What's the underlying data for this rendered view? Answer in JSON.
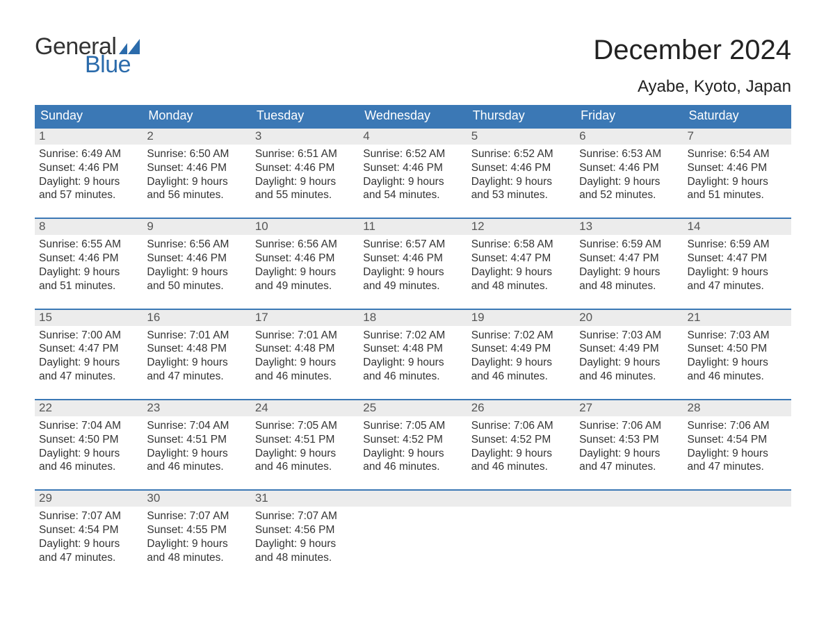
{
  "logo": {
    "text1": "General",
    "text2": "Blue",
    "flag_color": "#2b6bab"
  },
  "title": "December 2024",
  "location": "Ayabe, Kyoto, Japan",
  "colors": {
    "header_bg": "#3b78b5",
    "header_text": "#ffffff",
    "daynum_bg": "#ececec",
    "rule": "#3b78b5",
    "text": "#333333"
  },
  "day_headers": [
    "Sunday",
    "Monday",
    "Tuesday",
    "Wednesday",
    "Thursday",
    "Friday",
    "Saturday"
  ],
  "label_sunrise": "Sunrise:",
  "label_sunset": "Sunset:",
  "label_daylight_prefix": "Daylight:",
  "weeks": [
    [
      {
        "n": "1",
        "sunrise": "6:49 AM",
        "sunset": "4:46 PM",
        "dl1": "9 hours",
        "dl2": "and 57 minutes."
      },
      {
        "n": "2",
        "sunrise": "6:50 AM",
        "sunset": "4:46 PM",
        "dl1": "9 hours",
        "dl2": "and 56 minutes."
      },
      {
        "n": "3",
        "sunrise": "6:51 AM",
        "sunset": "4:46 PM",
        "dl1": "9 hours",
        "dl2": "and 55 minutes."
      },
      {
        "n": "4",
        "sunrise": "6:52 AM",
        "sunset": "4:46 PM",
        "dl1": "9 hours",
        "dl2": "and 54 minutes."
      },
      {
        "n": "5",
        "sunrise": "6:52 AM",
        "sunset": "4:46 PM",
        "dl1": "9 hours",
        "dl2": "and 53 minutes."
      },
      {
        "n": "6",
        "sunrise": "6:53 AM",
        "sunset": "4:46 PM",
        "dl1": "9 hours",
        "dl2": "and 52 minutes."
      },
      {
        "n": "7",
        "sunrise": "6:54 AM",
        "sunset": "4:46 PM",
        "dl1": "9 hours",
        "dl2": "and 51 minutes."
      }
    ],
    [
      {
        "n": "8",
        "sunrise": "6:55 AM",
        "sunset": "4:46 PM",
        "dl1": "9 hours",
        "dl2": "and 51 minutes."
      },
      {
        "n": "9",
        "sunrise": "6:56 AM",
        "sunset": "4:46 PM",
        "dl1": "9 hours",
        "dl2": "and 50 minutes."
      },
      {
        "n": "10",
        "sunrise": "6:56 AM",
        "sunset": "4:46 PM",
        "dl1": "9 hours",
        "dl2": "and 49 minutes."
      },
      {
        "n": "11",
        "sunrise": "6:57 AM",
        "sunset": "4:46 PM",
        "dl1": "9 hours",
        "dl2": "and 49 minutes."
      },
      {
        "n": "12",
        "sunrise": "6:58 AM",
        "sunset": "4:47 PM",
        "dl1": "9 hours",
        "dl2": "and 48 minutes."
      },
      {
        "n": "13",
        "sunrise": "6:59 AM",
        "sunset": "4:47 PM",
        "dl1": "9 hours",
        "dl2": "and 48 minutes."
      },
      {
        "n": "14",
        "sunrise": "6:59 AM",
        "sunset": "4:47 PM",
        "dl1": "9 hours",
        "dl2": "and 47 minutes."
      }
    ],
    [
      {
        "n": "15",
        "sunrise": "7:00 AM",
        "sunset": "4:47 PM",
        "dl1": "9 hours",
        "dl2": "and 47 minutes."
      },
      {
        "n": "16",
        "sunrise": "7:01 AM",
        "sunset": "4:48 PM",
        "dl1": "9 hours",
        "dl2": "and 47 minutes."
      },
      {
        "n": "17",
        "sunrise": "7:01 AM",
        "sunset": "4:48 PM",
        "dl1": "9 hours",
        "dl2": "and 46 minutes."
      },
      {
        "n": "18",
        "sunrise": "7:02 AM",
        "sunset": "4:48 PM",
        "dl1": "9 hours",
        "dl2": "and 46 minutes."
      },
      {
        "n": "19",
        "sunrise": "7:02 AM",
        "sunset": "4:49 PM",
        "dl1": "9 hours",
        "dl2": "and 46 minutes."
      },
      {
        "n": "20",
        "sunrise": "7:03 AM",
        "sunset": "4:49 PM",
        "dl1": "9 hours",
        "dl2": "and 46 minutes."
      },
      {
        "n": "21",
        "sunrise": "7:03 AM",
        "sunset": "4:50 PM",
        "dl1": "9 hours",
        "dl2": "and 46 minutes."
      }
    ],
    [
      {
        "n": "22",
        "sunrise": "7:04 AM",
        "sunset": "4:50 PM",
        "dl1": "9 hours",
        "dl2": "and 46 minutes."
      },
      {
        "n": "23",
        "sunrise": "7:04 AM",
        "sunset": "4:51 PM",
        "dl1": "9 hours",
        "dl2": "and 46 minutes."
      },
      {
        "n": "24",
        "sunrise": "7:05 AM",
        "sunset": "4:51 PM",
        "dl1": "9 hours",
        "dl2": "and 46 minutes."
      },
      {
        "n": "25",
        "sunrise": "7:05 AM",
        "sunset": "4:52 PM",
        "dl1": "9 hours",
        "dl2": "and 46 minutes."
      },
      {
        "n": "26",
        "sunrise": "7:06 AM",
        "sunset": "4:52 PM",
        "dl1": "9 hours",
        "dl2": "and 46 minutes."
      },
      {
        "n": "27",
        "sunrise": "7:06 AM",
        "sunset": "4:53 PM",
        "dl1": "9 hours",
        "dl2": "and 47 minutes."
      },
      {
        "n": "28",
        "sunrise": "7:06 AM",
        "sunset": "4:54 PM",
        "dl1": "9 hours",
        "dl2": "and 47 minutes."
      }
    ],
    [
      {
        "n": "29",
        "sunrise": "7:07 AM",
        "sunset": "4:54 PM",
        "dl1": "9 hours",
        "dl2": "and 47 minutes."
      },
      {
        "n": "30",
        "sunrise": "7:07 AM",
        "sunset": "4:55 PM",
        "dl1": "9 hours",
        "dl2": "and 48 minutes."
      },
      {
        "n": "31",
        "sunrise": "7:07 AM",
        "sunset": "4:56 PM",
        "dl1": "9 hours",
        "dl2": "and 48 minutes."
      },
      {
        "n": "",
        "empty": true
      },
      {
        "n": "",
        "empty": true
      },
      {
        "n": "",
        "empty": true
      },
      {
        "n": "",
        "empty": true
      }
    ]
  ]
}
